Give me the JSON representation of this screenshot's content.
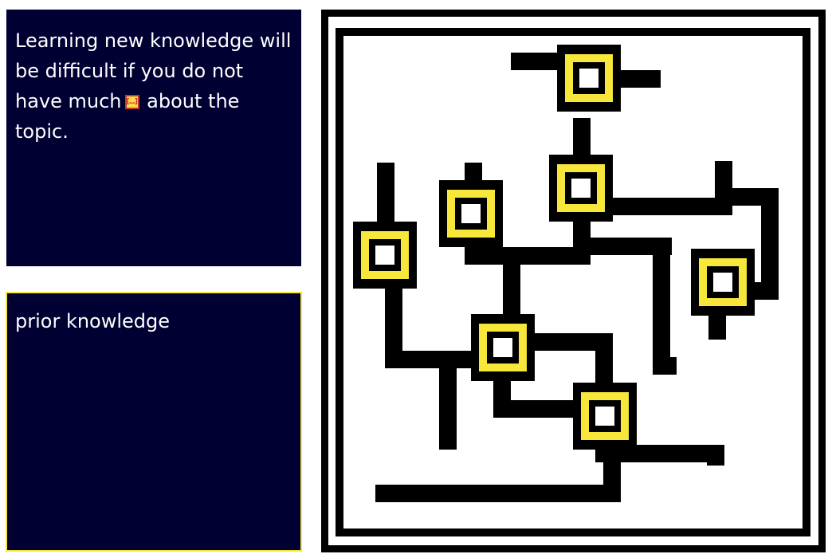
{
  "question": {
    "text_before": "Learning new knowledge will be difficult if you do not have much",
    "blank_icon": "ellipsis-blank-icon",
    "text_after": "about the topic."
  },
  "answer": {
    "text": "prior knowledge"
  },
  "colors": {
    "card_bg": "#000033",
    "card_text": "#ffffff",
    "accent_yellow": "#f7e73a",
    "maze_line": "#000000",
    "maze_bg": "#ffffff"
  },
  "illustration": {
    "icon": "circuit-maze-icon"
  }
}
